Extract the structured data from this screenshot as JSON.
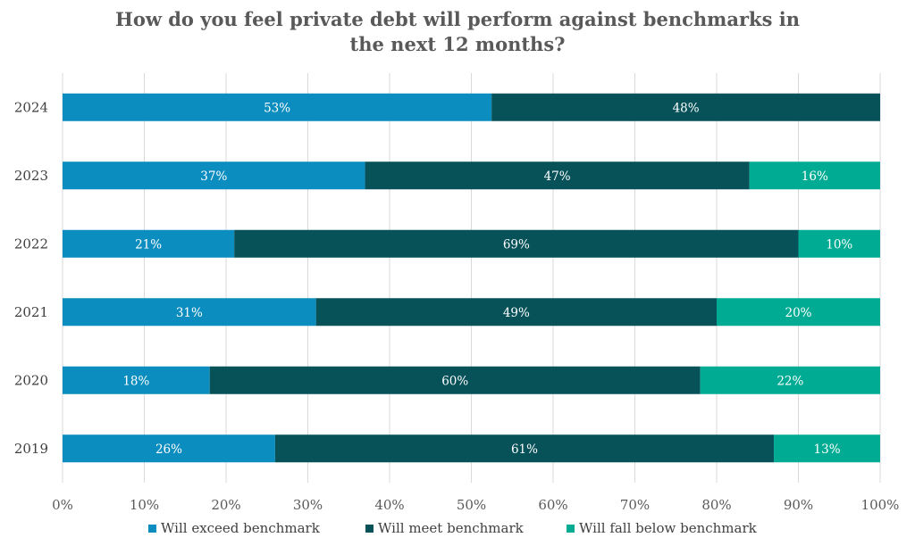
{
  "chart_data": {
    "type": "bar",
    "orientation": "horizontal",
    "stacked": true,
    "title_lines": [
      "How do you feel private debt will perform against benchmarks in",
      "the next 12 months?"
    ],
    "categories": [
      "2024",
      "2023",
      "2022",
      "2021",
      "2020",
      "2019"
    ],
    "series": [
      {
        "name": "Will exceed benchmark",
        "color": "#0c8dbf",
        "values": [
          53,
          37,
          21,
          31,
          18,
          26
        ],
        "labels": [
          "53%",
          "37%",
          "21%",
          "31%",
          "18%",
          "26%"
        ]
      },
      {
        "name": "Will meet benchmark",
        "color": "#075259",
        "values": [
          48,
          47,
          69,
          49,
          60,
          61
        ],
        "labels": [
          "48%",
          "47%",
          "69%",
          "49%",
          "60%",
          "61%"
        ]
      },
      {
        "name": "Will fall below benchmark",
        "color": "#00ab93",
        "values": [
          0,
          16,
          10,
          20,
          22,
          13
        ],
        "labels": [
          "",
          "16%",
          "10%",
          "20%",
          "22%",
          "13%"
        ]
      }
    ],
    "x_ticks": [
      "0%",
      "10%",
      "20%",
      "30%",
      "40%",
      "50%",
      "60%",
      "70%",
      "80%",
      "90%",
      "100%"
    ],
    "xlim": [
      0,
      100
    ],
    "grid": true,
    "legend_position": "bottom"
  }
}
